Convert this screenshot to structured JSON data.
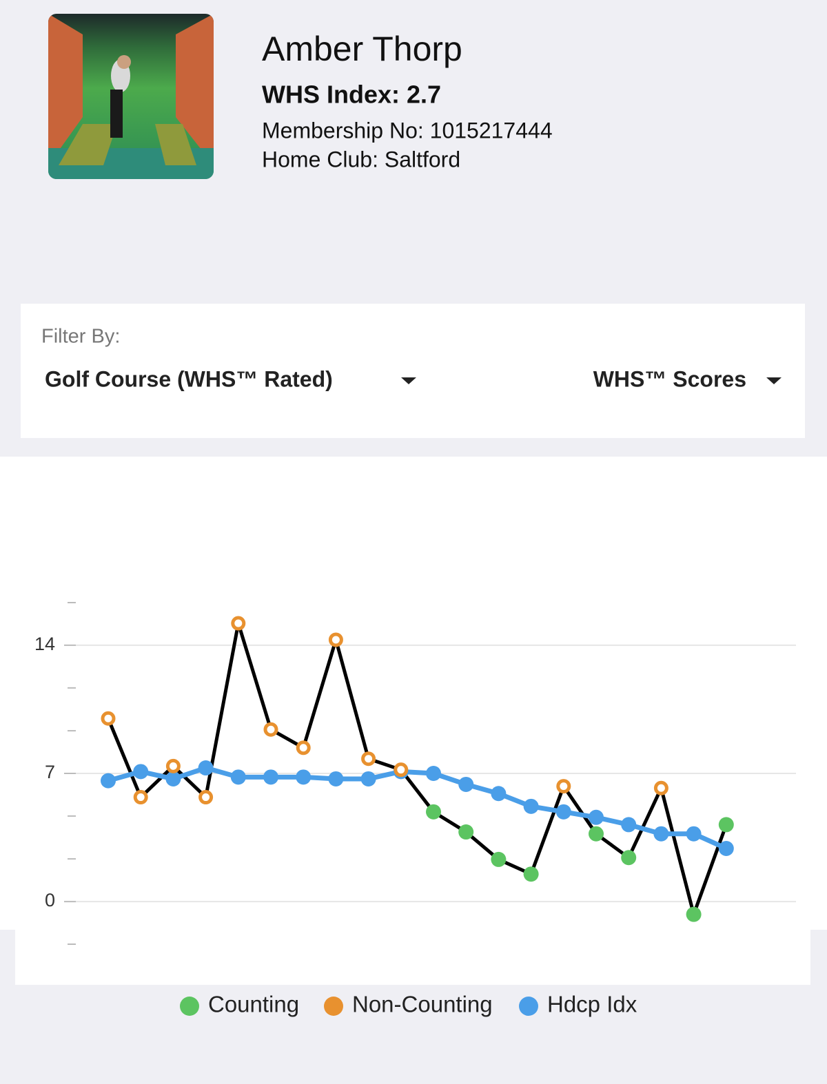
{
  "profile": {
    "name": "Amber Thorp",
    "whs_index": "WHS Index: 2.7",
    "membership": "Membership No: 1015217444",
    "home_club": "Home Club: Saltford"
  },
  "filter": {
    "label": "Filter By:",
    "course": "Golf Course (WHS™ Rated)",
    "scores": "WHS™ Scores"
  },
  "chart_data": {
    "type": "line",
    "categories": [
      null,
      null,
      null,
      null,
      null,
      null,
      null,
      null,
      null,
      null,
      null,
      null,
      null,
      null,
      null,
      null,
      null,
      null,
      null,
      null
    ],
    "line_color": "#000000",
    "series": [
      {
        "name": "Counting",
        "color": "#5cc461",
        "values": [
          null,
          null,
          null,
          null,
          null,
          null,
          null,
          null,
          null,
          null,
          4.9,
          3.8,
          2.3,
          1.5,
          null,
          3.7,
          2.4,
          null,
          -0.7,
          4.2
        ]
      },
      {
        "name": "Non-Counting",
        "color": "#e8912f",
        "values": [
          10.0,
          5.7,
          7.4,
          5.7,
          15.2,
          9.4,
          8.4,
          14.3,
          7.8,
          7.2,
          null,
          null,
          null,
          null,
          6.3,
          null,
          null,
          6.2,
          null,
          null
        ]
      },
      {
        "name": "Hdcp Idx",
        "color": "#4a9ee8",
        "values": [
          6.6,
          7.1,
          6.7,
          7.3,
          6.8,
          6.8,
          6.8,
          6.7,
          6.7,
          7.1,
          7.0,
          6.4,
          5.9,
          5.2,
          4.9,
          4.6,
          4.2,
          3.7,
          3.7,
          2.9
        ]
      }
    ],
    "ylim": [
      -2.33,
      16.33
    ],
    "yticks": [
      0,
      7,
      14
    ],
    "yminorticks": [
      -2.33,
      2.33,
      4.67,
      9.33,
      11.67,
      16.33
    ],
    "grid": true
  }
}
